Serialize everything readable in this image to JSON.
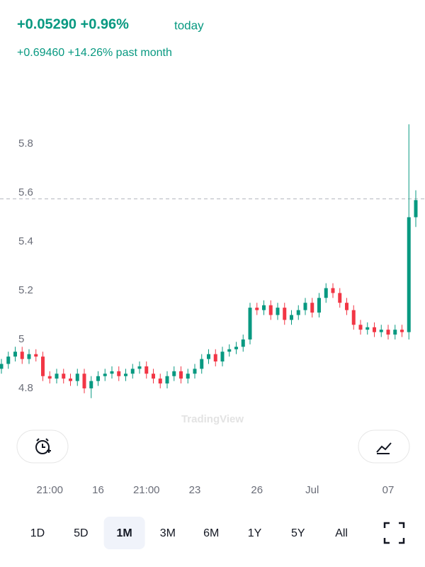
{
  "header": {
    "change_today": "+0.05290 +0.96%",
    "today_label": "today",
    "change_month": "+0.69460 +14.26% past month"
  },
  "chart_data": {
    "type": "candlestick",
    "categories": [
      null,
      null,
      null,
      null,
      null,
      null,
      null,
      "21:00",
      null,
      null,
      null,
      null,
      null,
      null,
      "16",
      null,
      null,
      null,
      null,
      null,
      null,
      "21:00",
      null,
      null,
      null,
      null,
      null,
      null,
      "23",
      null,
      null,
      null,
      null,
      null,
      null,
      null,
      null,
      "26",
      null,
      null,
      null,
      null,
      null,
      null,
      null,
      "Jul",
      null,
      null,
      null,
      null,
      null,
      null,
      null,
      null,
      null,
      null,
      "07",
      null,
      null,
      null,
      null
    ],
    "open": [
      4.88,
      4.9,
      4.93,
      4.95,
      4.92,
      4.94,
      4.93,
      4.85,
      4.84,
      4.86,
      4.84,
      4.83,
      4.86,
      4.8,
      4.83,
      4.85,
      4.86,
      4.87,
      4.85,
      4.86,
      4.88,
      4.89,
      4.86,
      4.84,
      4.82,
      4.85,
      4.87,
      4.84,
      4.86,
      4.88,
      4.92,
      4.94,
      4.91,
      4.95,
      4.96,
      4.97,
      5.0,
      5.13,
      5.12,
      5.14,
      5.1,
      5.13,
      5.08,
      5.1,
      5.12,
      5.15,
      5.11,
      5.17,
      5.21,
      5.19,
      5.15,
      5.12,
      5.06,
      5.04,
      5.05,
      5.03,
      5.04,
      5.02,
      5.04,
      5.03,
      5.5
    ],
    "high": [
      4.92,
      4.95,
      4.97,
      4.97,
      4.96,
      4.96,
      4.95,
      4.87,
      4.88,
      4.88,
      4.86,
      4.88,
      4.88,
      4.85,
      4.87,
      4.88,
      4.89,
      4.89,
      4.88,
      4.9,
      4.91,
      4.91,
      4.88,
      4.86,
      4.87,
      4.89,
      4.89,
      4.88,
      4.9,
      4.94,
      4.96,
      4.96,
      4.97,
      4.98,
      4.99,
      5.02,
      5.15,
      5.15,
      5.16,
      5.16,
      5.15,
      5.15,
      5.12,
      5.14,
      5.17,
      5.17,
      5.19,
      5.23,
      5.23,
      5.21,
      5.17,
      5.14,
      5.08,
      5.07,
      5.07,
      5.06,
      5.06,
      5.06,
      5.06,
      5.88,
      5.61
    ],
    "low": [
      4.86,
      4.88,
      4.91,
      4.9,
      4.9,
      4.91,
      4.83,
      4.82,
      4.82,
      4.82,
      4.81,
      4.81,
      4.78,
      4.76,
      4.81,
      4.83,
      4.84,
      4.83,
      4.83,
      4.84,
      4.86,
      4.84,
      4.82,
      4.8,
      4.8,
      4.83,
      4.82,
      4.82,
      4.84,
      4.86,
      4.9,
      4.89,
      4.89,
      4.93,
      4.94,
      4.95,
      4.98,
      5.1,
      5.1,
      5.08,
      5.08,
      5.06,
      5.06,
      5.08,
      5.1,
      5.09,
      5.09,
      5.15,
      5.17,
      5.13,
      5.1,
      5.04,
      5.02,
      5.02,
      5.01,
      5.01,
      5.0,
      5.0,
      5.01,
      5.0,
      5.46
    ],
    "close": [
      4.9,
      4.93,
      4.95,
      4.92,
      4.94,
      4.93,
      4.85,
      4.84,
      4.86,
      4.84,
      4.83,
      4.86,
      4.8,
      4.83,
      4.85,
      4.86,
      4.87,
      4.85,
      4.86,
      4.88,
      4.89,
      4.86,
      4.84,
      4.82,
      4.85,
      4.87,
      4.84,
      4.86,
      4.88,
      4.92,
      4.94,
      4.91,
      4.95,
      4.96,
      4.97,
      5.0,
      5.13,
      5.12,
      5.14,
      5.1,
      5.13,
      5.08,
      5.1,
      5.12,
      5.15,
      5.11,
      5.17,
      5.21,
      5.19,
      5.15,
      5.12,
      5.06,
      5.04,
      5.05,
      5.03,
      5.04,
      5.02,
      5.04,
      5.03,
      5.5,
      5.57
    ],
    "up_color": "#089981",
    "down_color": "#f23645",
    "ylim": [
      4.71,
      5.9
    ],
    "yticks": [
      4.8,
      5,
      5.2,
      5.4,
      5.6,
      5.8
    ],
    "last_price": 5.575,
    "watermark": "TradingView"
  },
  "ranges": {
    "items": [
      "1D",
      "5D",
      "1M",
      "3M",
      "6M",
      "1Y",
      "5Y",
      "All"
    ],
    "selected": "1M"
  }
}
